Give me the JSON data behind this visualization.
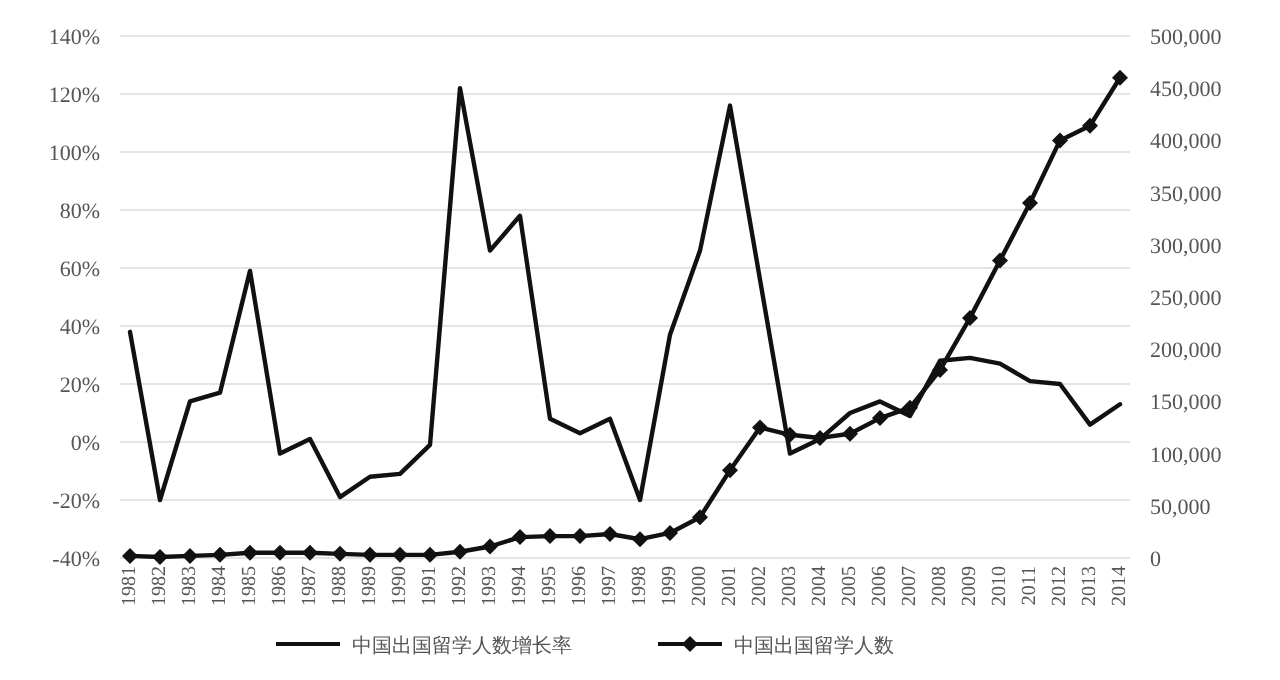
{
  "chart_data": {
    "type": "line",
    "categories": [
      "1981",
      "1982",
      "1983",
      "1984",
      "1985",
      "1986",
      "1987",
      "1988",
      "1989",
      "1990",
      "1991",
      "1992",
      "1993",
      "1994",
      "1995",
      "1996",
      "1997",
      "1998",
      "1999",
      "2000",
      "2001",
      "2002",
      "2003",
      "2004",
      "2005",
      "2006",
      "2007",
      "2008",
      "2009",
      "2010",
      "2011",
      "2012",
      "2013",
      "2014"
    ],
    "series": [
      {
        "name": "中国出国留学人数增长率",
        "color": "#111111",
        "marker": "none",
        "values": [
          38,
          -20,
          14,
          17,
          59,
          -4,
          1,
          -19,
          -12,
          -11,
          -1,
          122,
          66,
          78,
          8,
          3,
          8,
          -20,
          37,
          66,
          116,
          56,
          -4,
          1,
          10,
          14,
          9,
          28,
          29,
          27,
          21,
          20,
          6,
          13
        ]
      },
      {
        "name": "中国出国留学人数",
        "color": "#111111",
        "marker": "diamond",
        "axis": "y2",
        "values": [
          2000,
          1000,
          2000,
          3000,
          5000,
          5000,
          5000,
          4000,
          3000,
          3000,
          3000,
          6000,
          11000,
          20000,
          21000,
          21000,
          23000,
          18000,
          24000,
          39000,
          84000,
          125000,
          118000,
          115000,
          119000,
          134000,
          144000,
          180000,
          230000,
          285000,
          340000,
          400000,
          414000,
          460000
        ]
      }
    ],
    "ylim": [
      -40,
      140
    ],
    "yticks": [
      {
        "value": -40,
        "label": "-40%"
      },
      {
        "value": -20,
        "label": "-20%"
      },
      {
        "value": 0,
        "label": "0%"
      },
      {
        "value": 20,
        "label": "20%"
      },
      {
        "value": 40,
        "label": "40%"
      },
      {
        "value": 60,
        "label": "60%"
      },
      {
        "value": 80,
        "label": "80%"
      },
      {
        "value": 100,
        "label": "100%"
      },
      {
        "value": 120,
        "label": "120%"
      },
      {
        "value": 140,
        "label": "140%"
      }
    ],
    "y2lim": [
      0,
      500000
    ],
    "y2ticks": [
      0,
      {
        "value": 50000,
        "label": "50,000"
      },
      {
        "value": 100000,
        "label": "100,000"
      },
      {
        "value": 150000,
        "label": "150,000"
      },
      {
        "value": 200000,
        "label": "200,000"
      },
      {
        "value": 250000,
        "label": "250,000"
      },
      {
        "value": 300000,
        "label": "300,000"
      },
      {
        "value": 350000,
        "label": "350,000"
      },
      {
        "value": 400000,
        "label": "400,000"
      },
      {
        "value": 450000,
        "label": "450,000"
      },
      {
        "value": 500000,
        "label": "500,000"
      }
    ],
    "grid": "y",
    "legend": "bottom"
  }
}
